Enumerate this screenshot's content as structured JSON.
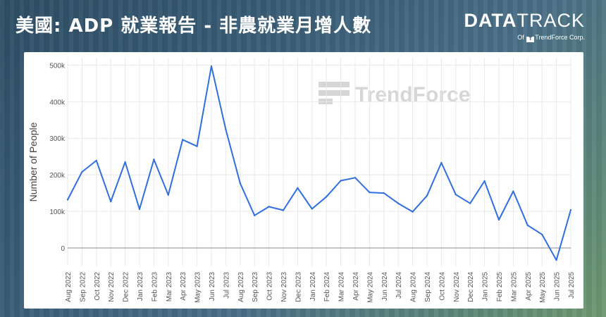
{
  "header": {
    "title": "美國: ADP 就業報告 - 非農就業月增人數"
  },
  "brand": {
    "logo_bold": "DATA",
    "logo_light": "TRACK",
    "sub_prefix": "Of",
    "sub_mark": "T",
    "sub_name": "TrendForce Corp."
  },
  "watermark": {
    "text": "TrendForce"
  },
  "colors": {
    "line": "#2f6fe0",
    "zero_line": "#888888",
    "grid": "#e8e8e8"
  },
  "chart_data": {
    "type": "line",
    "ylabel": "Number of People",
    "xlabel": "",
    "ylim": [
      -50000,
      520000
    ],
    "yticks": [
      0,
      100000,
      200000,
      300000,
      400000,
      500000
    ],
    "ytick_labels": [
      "0",
      "100k",
      "200k",
      "300k",
      "400k",
      "500k"
    ],
    "categories": [
      "Aug 2022",
      "Sep 2022",
      "Oct 2022",
      "Nov 2022",
      "Dec 2022",
      "Jan 2023",
      "Feb 2023",
      "Mar 2023",
      "Apr 2023",
      "May 2023",
      "Jun 2023",
      "Jul 2023",
      "Aug 2023",
      "Sep 2023",
      "Oct 2023",
      "Nov 2023",
      "Dec 2023",
      "Jan 2024",
      "Feb 2024",
      "Mar 2024",
      "Apr 2024",
      "May 2024",
      "Jun 2024",
      "Jul 2024",
      "Aug 2024",
      "Sep 2024",
      "Oct 2024",
      "Nov 2024",
      "Dec 2024",
      "Jan 2025",
      "Feb 2025",
      "Mar 2025",
      "Apr 2025",
      "May 2025",
      "Jun 2025",
      "Jul 2025"
    ],
    "series": [
      {
        "values": [
          132000,
          208000,
          239000,
          127000,
          235000,
          106000,
          242000,
          145000,
          296000,
          278000,
          497000,
          324000,
          177000,
          89000,
          113000,
          103000,
          164000,
          107000,
          140000,
          184000,
          192000,
          152000,
          150000,
          122000,
          99000,
          143000,
          233000,
          146000,
          122000,
          183000,
          77000,
          155000,
          62000,
          37000,
          -33000,
          104000
        ]
      }
    ],
    "grid": true,
    "legend": "none"
  }
}
